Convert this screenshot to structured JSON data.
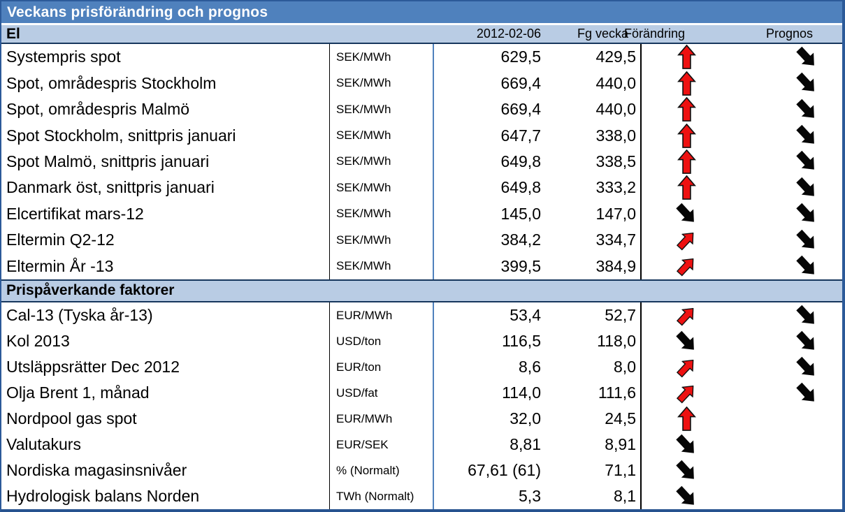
{
  "title": "Veckans prisförändring och prognos",
  "header": {
    "date": "2012-02-06",
    "prev_week": "Fg vecka",
    "change": "Förändring",
    "forecast": "Prognos"
  },
  "sections": [
    {
      "label": "El",
      "rows": [
        {
          "label": "Systempris spot",
          "unit": "SEK/MWh",
          "value": "629,5",
          "prev": "429,5",
          "change": "up",
          "forecast": "diag_down"
        },
        {
          "label": "Spot, områdespris Stockholm",
          "unit": "SEK/MWh",
          "value": "669,4",
          "prev": "440,0",
          "change": "up",
          "forecast": "diag_down"
        },
        {
          "label": "Spot, områdespris Malmö",
          "unit": "SEK/MWh",
          "value": "669,4",
          "prev": "440,0",
          "change": "up",
          "forecast": "diag_down"
        },
        {
          "label": "Spot Stockholm, snittpris januari",
          "unit": "SEK/MWh",
          "value": "647,7",
          "prev": "338,0",
          "change": "up",
          "forecast": "diag_down"
        },
        {
          "label": "Spot Malmö, snittpris januari",
          "unit": "SEK/MWh",
          "value": "649,8",
          "prev": "338,5",
          "change": "up",
          "forecast": "diag_down"
        },
        {
          "label": "Danmark öst, snittpris januari",
          "unit": "SEK/MWh",
          "value": "649,8",
          "prev": "333,2",
          "change": "up",
          "forecast": "diag_down"
        },
        {
          "label": "Elcertifikat mars-12",
          "unit": "SEK/MWh",
          "value": "145,0",
          "prev": "147,0",
          "change": "diag_down",
          "forecast": "diag_down"
        },
        {
          "label": "Eltermin Q2-12",
          "unit": "SEK/MWh",
          "value": "384,2",
          "prev": "334,7",
          "change": "diag_up",
          "forecast": "diag_down"
        },
        {
          "label": "Eltermin År -13",
          "unit": "SEK/MWh",
          "value": "399,5",
          "prev": "384,9",
          "change": "diag_up",
          "forecast": "diag_down"
        }
      ]
    },
    {
      "label": "Prispåverkande faktorer",
      "rows": [
        {
          "label": "Cal-13 (Tyska år-13)",
          "unit": "EUR/MWh",
          "value": "53,4",
          "prev": "52,7",
          "change": "diag_up",
          "forecast": "diag_down"
        },
        {
          "label": "Kol 2013",
          "unit": "USD/ton",
          "value": "116,5",
          "prev": "118,0",
          "change": "diag_down",
          "forecast": "diag_down"
        },
        {
          "label": "Utsläppsrätter Dec 2012",
          "unit": "EUR/ton",
          "value": "8,6",
          "prev": "8,0",
          "change": "diag_up",
          "forecast": "diag_down"
        },
        {
          "label": "Olja Brent 1, månad",
          "unit": "USD/fat",
          "value": "114,0",
          "prev": "111,6",
          "change": "diag_up",
          "forecast": "diag_down"
        },
        {
          "label": "Nordpool gas spot",
          "unit": "EUR/MWh",
          "value": "32,0",
          "prev": "24,5",
          "change": "up",
          "forecast": null
        },
        {
          "label": "Valutakurs",
          "unit": "EUR/SEK",
          "value": "8,81",
          "prev": "8,91",
          "change": "diag_down",
          "forecast": null
        },
        {
          "label": "Nordiska magasinsnivåer",
          "unit": "% (Normalt)",
          "value": "67,61 (61)",
          "prev": "71,1",
          "change": "diag_down",
          "forecast": null
        },
        {
          "label": "Hydrologisk balans Norden",
          "unit": "TWh (Normalt)",
          "value": "5,3",
          "prev": "8,1",
          "change": "diag_down",
          "forecast": null
        }
      ]
    }
  ],
  "colors": {
    "title_bar": "#4f81bd",
    "band_background": "#b9cce4",
    "frame_border": "#2c5a99",
    "dark_border": "#17375d",
    "blue_divider": "#4f81bd",
    "arrow_up_red": "#ee1111",
    "arrow_down_black": "#060606"
  }
}
